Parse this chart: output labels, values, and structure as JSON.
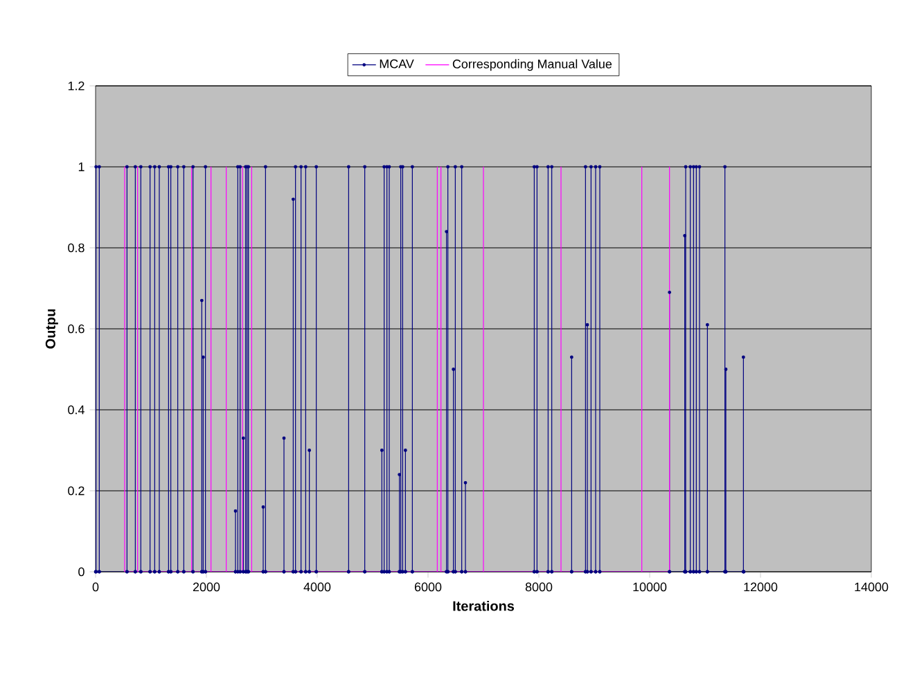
{
  "chart_data": {
    "type": "line",
    "xlabel": "Iterations",
    "ylabel": "Outpu",
    "xlim": [
      0,
      14000
    ],
    "ylim": [
      0,
      1.2
    ],
    "xticks": [
      0,
      2000,
      4000,
      6000,
      8000,
      10000,
      12000,
      14000
    ],
    "yticks": [
      0,
      0.2,
      0.4,
      0.6,
      0.8,
      1,
      1.2
    ],
    "grid": "y",
    "legend": "top",
    "series": [
      {
        "name": "MCAV",
        "color": "#000080",
        "marker": "circle",
        "x": [
          0,
          8,
          8,
          8,
          67,
          67,
          67,
          567,
          567,
          567,
          717,
          717,
          717,
          817,
          817,
          817,
          983,
          983,
          983,
          1067,
          1067,
          1067,
          1150,
          1150,
          1150,
          1317,
          1317,
          1317,
          1358,
          1358,
          1358,
          1483,
          1483,
          1483,
          1592,
          1592,
          1592,
          1758,
          1758,
          1758,
          1917,
          1917,
          1917,
          1942,
          1942,
          1942,
          1983,
          1983,
          1983,
          2525,
          2525,
          2525,
          2567,
          2567,
          2567,
          2608,
          2608,
          2608,
          2667,
          2667,
          2667,
          2708,
          2708,
          2708,
          2733,
          2733,
          2733,
          2758,
          2758,
          2758,
          3025,
          3025,
          3025,
          3067,
          3067,
          3067,
          3400,
          3400,
          3400,
          3567,
          3567,
          3567,
          3608,
          3608,
          3608,
          3708,
          3708,
          3708,
          3792,
          3792,
          3792,
          3858,
          3858,
          3858,
          3983,
          3983,
          3983,
          4567,
          4567,
          4567,
          4858,
          4858,
          4858,
          5167,
          5167,
          5167,
          5208,
          5208,
          5208,
          5258,
          5258,
          5258,
          5300,
          5300,
          5300,
          5483,
          5483,
          5483,
          5508,
          5508,
          5508,
          5542,
          5542,
          5542,
          5592,
          5592,
          5592,
          5717,
          5717,
          5717,
          6333,
          6333,
          6333,
          6358,
          6358,
          6358,
          6458,
          6458,
          6458,
          6492,
          6492,
          6492,
          6608,
          6608,
          6608,
          6675,
          6675,
          6675,
          7917,
          7917,
          7917,
          7967,
          7967,
          7967,
          8167,
          8167,
          8167,
          8233,
          8233,
          8233,
          8592,
          8592,
          8592,
          8842,
          8842,
          8842,
          8875,
          8875,
          8875,
          8942,
          8942,
          8942,
          9025,
          9025,
          9025,
          9100,
          9100,
          9100,
          10358,
          10358,
          10358,
          10633,
          10633,
          10633,
          10650,
          10650,
          10650,
          10733,
          10733,
          10733,
          10792,
          10792,
          10792,
          10842,
          10842,
          10842,
          10900,
          10900,
          10900,
          11042,
          11042,
          11042,
          11358,
          11358,
          11358,
          11375,
          11375,
          11375,
          11692,
          11692,
          11692,
          11700
        ],
        "values": [
          0,
          0,
          1,
          0,
          0,
          1,
          0,
          0,
          1,
          0,
          0,
          1,
          0,
          0,
          1,
          0,
          0,
          1,
          0,
          0,
          1,
          0,
          0,
          1,
          0,
          0,
          1,
          0,
          0,
          1,
          0,
          0,
          1,
          0,
          0,
          1,
          0,
          0,
          1,
          0,
          0,
          0.67,
          0,
          0,
          0.53,
          0,
          0,
          1,
          0,
          0,
          0.15,
          0,
          0,
          1,
          0,
          0,
          1,
          0,
          0,
          0.33,
          0,
          0,
          1,
          0,
          0,
          1,
          0,
          0,
          1,
          0,
          0,
          0.16,
          0,
          0,
          1,
          0,
          0,
          0.33,
          0,
          0,
          0.92,
          0,
          0,
          1,
          0,
          0,
          1,
          0,
          0,
          1,
          0,
          0,
          0.3,
          0,
          0,
          1,
          0,
          0,
          1,
          0,
          0,
          1,
          0,
          0,
          0.3,
          0,
          0,
          1,
          0,
          0,
          1,
          0,
          0,
          1,
          0,
          0,
          0.24,
          0,
          0,
          1,
          0,
          0,
          1,
          0,
          0,
          0.3,
          0,
          0,
          1,
          0,
          0,
          0.84,
          0,
          0,
          1,
          0,
          0,
          0.5,
          0,
          0,
          1,
          0,
          0,
          1,
          0,
          0,
          0.22,
          0,
          0,
          1,
          0,
          0,
          1,
          0,
          0,
          1,
          0,
          0,
          1,
          0,
          0,
          0.53,
          0,
          0,
          1,
          0,
          0,
          0.61,
          0,
          0,
          1,
          0,
          0,
          1,
          0,
          0,
          1,
          0,
          0,
          0.69,
          0,
          0,
          0.83,
          0,
          0,
          1,
          0,
          0,
          1,
          0,
          0,
          1,
          0,
          0,
          1,
          0,
          0,
          1,
          0,
          0,
          0.61,
          0,
          0,
          1,
          0,
          0,
          0.5,
          0,
          0,
          0.53,
          0,
          0
        ]
      },
      {
        "name": "Corresponding Manual Value",
        "color": "#ff00ff",
        "marker": "none",
        "x": [
          525,
          525,
          525,
          758,
          758,
          758,
          1733,
          1733,
          1733,
          2083,
          2083,
          2083,
          2358,
          2358,
          2358,
          2650,
          2650,
          2650,
          2817,
          2817,
          2817,
          6167,
          6167,
          6167,
          6233,
          6233,
          6233,
          7000,
          7000,
          7000,
          8400,
          8400,
          8400,
          9858,
          9858,
          9858,
          10358,
          10358,
          10358
        ],
        "values": [
          0,
          1,
          0,
          0,
          1,
          0,
          0,
          1,
          0,
          0,
          1,
          0,
          0,
          1,
          0,
          0,
          1,
          0,
          0,
          1,
          0,
          0,
          1,
          0,
          0,
          1,
          0,
          0,
          1,
          0,
          0,
          1,
          0,
          0,
          1,
          0,
          0,
          1,
          0
        ]
      }
    ]
  }
}
